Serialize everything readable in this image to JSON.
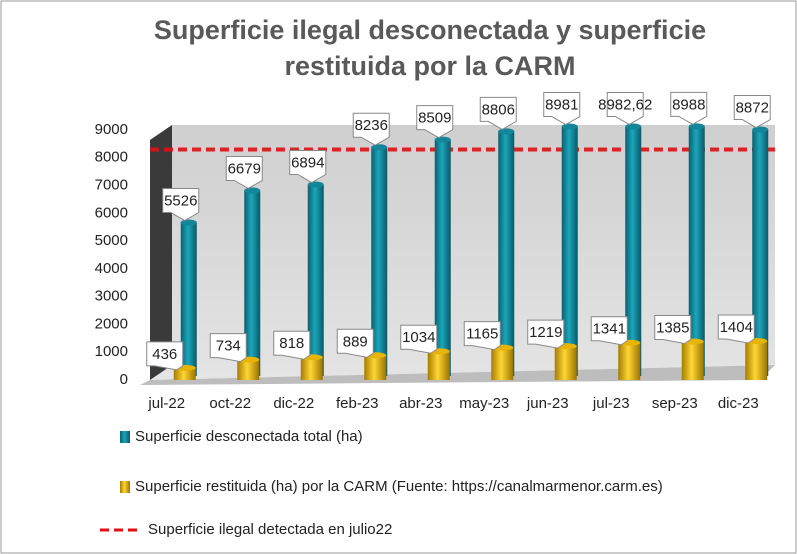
{
  "chart_data": {
    "type": "bar",
    "title": "Superficie ilegal desconectada y superficie restituida por la CARM",
    "categories": [
      "jul-22",
      "oct-22",
      "dic-22",
      "feb-23",
      "abr-23",
      "may-23",
      "jun-23",
      "jul-23",
      "sep-23",
      "dic-23"
    ],
    "series": [
      {
        "name": "Superficie desconectada total (ha)",
        "color": "#13869a",
        "values": [
          5526,
          6679,
          6894,
          8236,
          8509,
          8806,
          8981,
          8982.62,
          8988,
          8872
        ],
        "value_labels": [
          "5526",
          "6679",
          "6894",
          "8236",
          "8509",
          "8806",
          "8981",
          "8982,62",
          "8988",
          "8872"
        ]
      },
      {
        "name": "Superficie restituida (ha) por la CARM (Fuente: https://canalmarmenor.carm.es)",
        "color": "#e8b400",
        "values": [
          436,
          734,
          818,
          889,
          1034,
          1165,
          1219,
          1341,
          1385,
          1404
        ]
      }
    ],
    "reference_lines": [
      {
        "name": "Superficie ilegal detectada en julio22",
        "value": 8300,
        "color": "#e01010"
      }
    ],
    "ylim": [
      0,
      9000
    ],
    "yticks": [
      0,
      1000,
      2000,
      3000,
      4000,
      5000,
      6000,
      7000,
      8000,
      9000
    ],
    "grid": false
  }
}
